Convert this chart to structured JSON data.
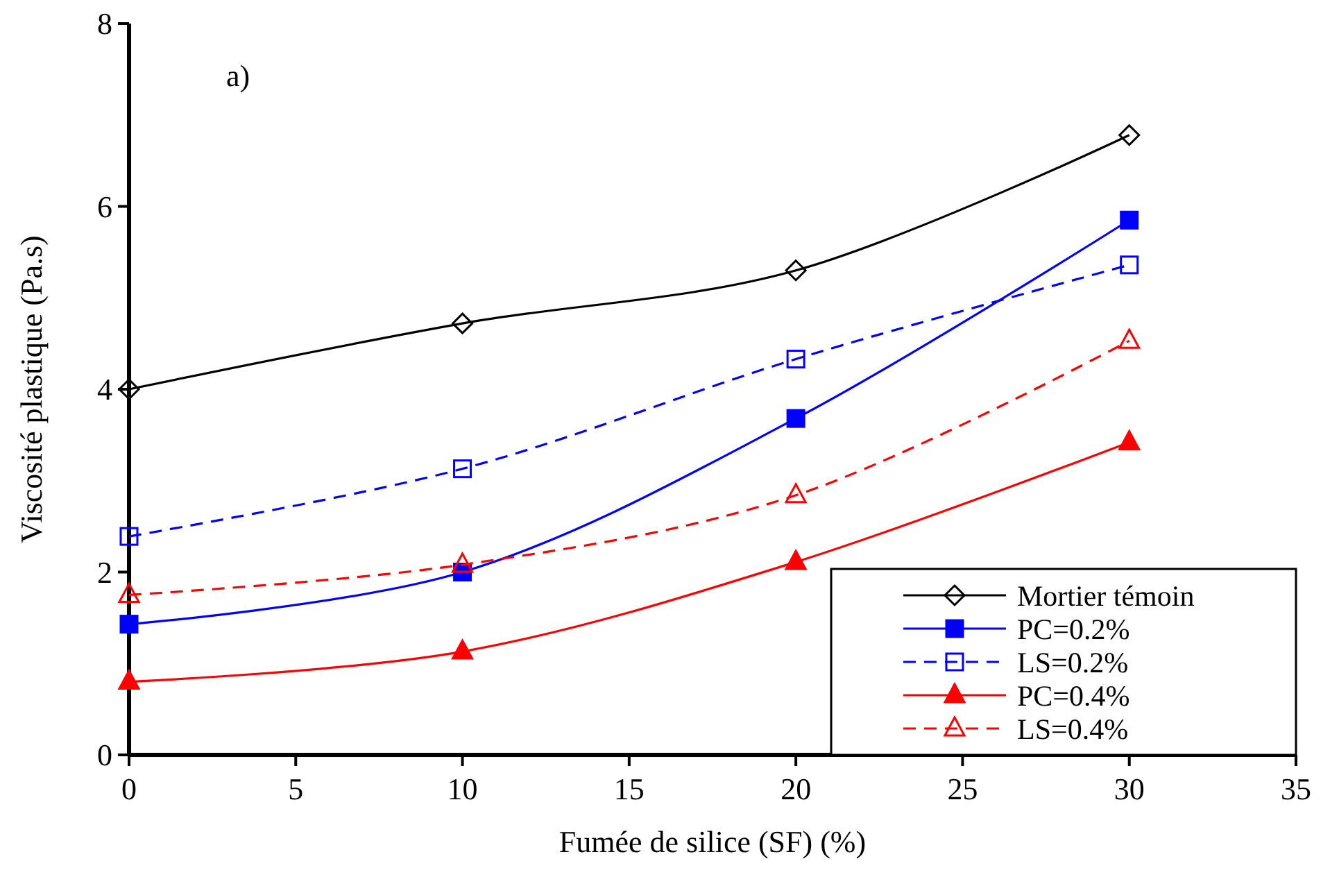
{
  "chart_data": {
    "type": "line",
    "xlabel": "Fumée de silice (SF) (%)",
    "ylabel": "Viscosité plastique (Pa.s)",
    "annotations": [
      "a)"
    ],
    "x": [
      0,
      10,
      20,
      30
    ],
    "xlim": [
      0,
      35
    ],
    "xticks": [
      0,
      5,
      10,
      15,
      20,
      25,
      30,
      35
    ],
    "ylim": [
      0,
      8
    ],
    "yticks": [
      0,
      2,
      4,
      6,
      8
    ],
    "grid": false,
    "legend": "bottom right",
    "series": [
      {
        "name": "Mortier témoin",
        "color": "#000000",
        "values": [
          4.0,
          4.72,
          5.3,
          6.78
        ],
        "marker": "diamond",
        "line_style": "solid"
      },
      {
        "name": "PC=0.2%",
        "color": "#0000ff",
        "values": [
          1.43,
          2.0,
          3.68,
          5.85
        ],
        "marker": "square",
        "line_style": "solid"
      },
      {
        "name": "LS=0.2%",
        "color": "#0000ff",
        "values": [
          2.39,
          3.13,
          4.33,
          5.36
        ],
        "marker": "square",
        "line_style": "dashed"
      },
      {
        "name": "PC=0.4%",
        "color": "#ff0000",
        "values": [
          0.8,
          1.13,
          2.11,
          3.42
        ],
        "marker": "triangle",
        "line_style": "solid"
      },
      {
        "name": "LS=0.4%",
        "color": "#ff0000",
        "values": [
          1.75,
          2.08,
          2.84,
          4.53
        ],
        "marker": "triangle",
        "line_style": "dashed"
      }
    ]
  }
}
